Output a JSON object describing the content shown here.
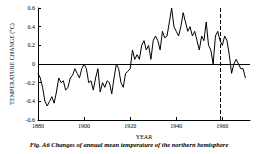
{
  "chart_data": {
    "type": "line",
    "title": "Fig. A6 Changes of annual mean temperature of the northern hemisphere",
    "x_label": "YEAR",
    "y_label": "TEMPERATURE CHANGE (°C)",
    "color": "#000000",
    "x": [
      1880,
      1881,
      1882,
      1883,
      1884,
      1885,
      1886,
      1887,
      1888,
      1889,
      1890,
      1891,
      1892,
      1893,
      1894,
      1895,
      1896,
      1897,
      1898,
      1899,
      1900,
      1901,
      1902,
      1903,
      1904,
      1905,
      1906,
      1907,
      1908,
      1909,
      1910,
      1911,
      1912,
      1913,
      1914,
      1915,
      1916,
      1917,
      1918,
      1919,
      1920,
      1921,
      1922,
      1923,
      1924,
      1925,
      1926,
      1927,
      1928,
      1929,
      1930,
      1931,
      1932,
      1933,
      1934,
      1935,
      1936,
      1937,
      1938,
      1939,
      1940,
      1941,
      1942,
      1943,
      1944,
      1945,
      1946,
      1947,
      1948,
      1949,
      1950,
      1951,
      1952,
      1953,
      1954,
      1955,
      1956,
      1957,
      1958,
      1959,
      1960,
      1961,
      1962,
      1963,
      1964,
      1965,
      1966,
      1967,
      1968,
      1969,
      1970
    ],
    "values": [
      -0.1,
      -0.15,
      -0.25,
      -0.4,
      -0.45,
      -0.4,
      -0.35,
      -0.42,
      -0.3,
      -0.15,
      -0.2,
      -0.18,
      -0.28,
      -0.25,
      -0.15,
      -0.12,
      -0.05,
      -0.1,
      -0.15,
      -0.05,
      0.0,
      -0.05,
      -0.2,
      -0.18,
      -0.28,
      -0.15,
      -0.05,
      -0.3,
      -0.2,
      -0.25,
      -0.18,
      -0.2,
      -0.32,
      -0.15,
      0.0,
      -0.05,
      -0.2,
      -0.25,
      -0.1,
      -0.08,
      -0.05,
      0.15,
      0.05,
      0.1,
      0.05,
      0.2,
      0.25,
      0.15,
      0.2,
      0.05,
      0.25,
      0.3,
      0.25,
      0.15,
      0.35,
      0.28,
      0.3,
      0.45,
      0.6,
      0.4,
      0.35,
      0.3,
      0.4,
      0.55,
      0.45,
      0.35,
      0.4,
      0.3,
      0.35,
      0.25,
      0.15,
      0.3,
      0.25,
      0.45,
      0.2,
      0.15,
      0.0,
      0.3,
      0.35,
      0.25,
      0.2,
      0.3,
      0.25,
      0.1,
      -0.1,
      0.0,
      0.05,
      0.0,
      -0.05,
      -0.05,
      -0.15
    ],
    "xlim": [
      1880,
      1972
    ],
    "xticks": [
      1880,
      1900,
      1920,
      1940,
      1960
    ],
    "ylim": [
      -0.6,
      0.6
    ],
    "yticks": [
      -0.6,
      -0.4,
      -0.2,
      0,
      0.2,
      0.4,
      0.6
    ],
    "vlines": [
      1959
    ],
    "hlines": [
      0
    ],
    "grid": false
  }
}
